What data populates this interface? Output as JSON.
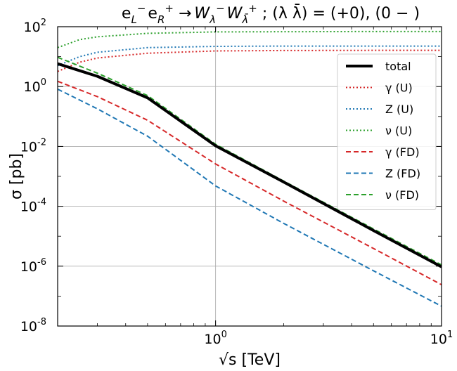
{
  "chart_data": {
    "type": "line",
    "title": "e_L^- e_R^+ → W_λ^- W_λ̄^+ ; (λ λ̄) = (+0), (0−)",
    "title_parts": {
      "e": "e",
      "L": "L",
      "R": "R",
      "minus": "−",
      "plus": "+",
      "arrow": " →",
      "W": "W",
      "lam": "λ",
      "lambar": "λ̄",
      "tail": " ; (λ λ̄) = (+0), (0 − )"
    },
    "xlabel": "√s [TeV]",
    "ylabel": "σ [pb]",
    "xscale": "log",
    "yscale": "log",
    "xlim": [
      0.2,
      10
    ],
    "ylim": [
      1e-08,
      100
    ],
    "grid": true,
    "legend_position": "right",
    "x_ticks": [
      {
        "value": 1,
        "base": "10",
        "exp": "0"
      },
      {
        "value": 10,
        "base": "10",
        "exp": "1"
      }
    ],
    "y_ticks": [
      {
        "value": 100,
        "base": "10",
        "exp": "2"
      },
      {
        "value": 1,
        "base": "10",
        "exp": "0"
      },
      {
        "value": 0.01,
        "base": "10",
        "exp": "-2"
      },
      {
        "value": 0.0001,
        "base": "10",
        "exp": "-4"
      },
      {
        "value": 1e-06,
        "base": "10",
        "exp": "-6"
      },
      {
        "value": 1e-08,
        "base": "10",
        "exp": "-8"
      }
    ],
    "series": [
      {
        "name": "total",
        "color": "#000000",
        "style": "solid",
        "x": [
          0.2,
          0.3,
          0.5,
          1,
          2,
          5,
          10
        ],
        "y": [
          5.8,
          2.2,
          0.42,
          0.0105,
          0.00065,
          1.55e-05,
          9.5e-07
        ]
      },
      {
        "name": "γ (U)",
        "color": "#d62728",
        "style": "dotted",
        "x": [
          0.2,
          0.25,
          0.3,
          0.5,
          1,
          2,
          5,
          10
        ],
        "y": [
          3.2,
          6.5,
          9.0,
          13.0,
          15.5,
          16.0,
          16.2,
          16.2
        ]
      },
      {
        "name": "Z (U)",
        "color": "#1f77b4",
        "style": "dotted",
        "x": [
          0.2,
          0.25,
          0.3,
          0.5,
          1,
          2,
          5,
          10
        ],
        "y": [
          5.0,
          10.0,
          14.0,
          20.0,
          22.0,
          22.5,
          22.5,
          22.5
        ]
      },
      {
        "name": "ν (U)",
        "color": "#2ca02c",
        "style": "dotted",
        "x": [
          0.2,
          0.25,
          0.3,
          0.5,
          1,
          2,
          5,
          10
        ],
        "y": [
          20.0,
          37.0,
          46.0,
          60.0,
          67.0,
          68.0,
          69.0,
          69.0
        ]
      },
      {
        "name": "γ (FD)",
        "color": "#d62728",
        "style": "dashed",
        "x": [
          0.2,
          0.3,
          0.5,
          1,
          2,
          5,
          10
        ],
        "y": [
          1.5,
          0.46,
          0.075,
          0.0026,
          0.00015,
          3.9e-06,
          2.4e-07
        ]
      },
      {
        "name": "Z (FD)",
        "color": "#1f77b4",
        "style": "dashed",
        "x": [
          0.2,
          0.3,
          0.5,
          1,
          2,
          5,
          10
        ],
        "y": [
          0.82,
          0.18,
          0.022,
          0.00048,
          2.7e-05,
          7e-07,
          4.6e-08
        ]
      },
      {
        "name": "ν (FD)",
        "color": "#2ca02c",
        "style": "dashed",
        "x": [
          0.2,
          0.3,
          0.5,
          1,
          2,
          5,
          10
        ],
        "y": [
          9.5,
          2.8,
          0.5,
          0.0118,
          0.0007,
          1.75e-05,
          1.1e-06
        ]
      }
    ]
  }
}
